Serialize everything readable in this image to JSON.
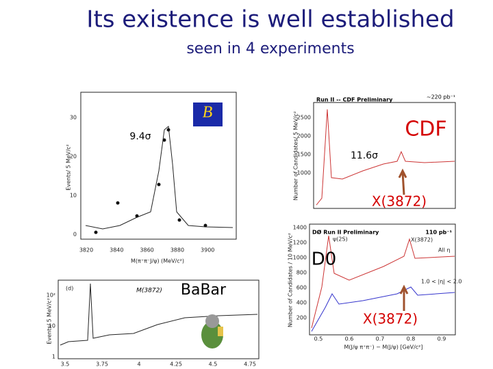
{
  "header": {
    "title": "Its existence is well established",
    "subtitle": "seen in 4 experiments"
  },
  "belle": {
    "significance": "9.4σ",
    "y_label": "Events/ 5 MeV/c²",
    "x_label": "M(π⁺π⁻J/ψ) (MeV/c²)",
    "yticks": [
      "0",
      "10",
      "20",
      "30"
    ],
    "xticks": [
      "3820",
      "3840",
      "3860",
      "3880",
      "3900"
    ]
  },
  "cdf": {
    "label": "CDF",
    "significance": "11.6σ",
    "arrow_label": "X(3872)",
    "plot_title": "Run II -- CDF Preliminary",
    "luminosity": "~220 pb⁻¹",
    "y_label": "Number of Candidates/ 5 MeV/c²",
    "yticks": [
      "2500",
      "2000",
      "1500",
      "1000"
    ]
  },
  "d0": {
    "label": "D0",
    "arrow_label": "X(3872)",
    "plot_title": "DØ Run II Preliminary",
    "luminosity": "110 pb⁻¹",
    "y_label": "Number of Candidates / 10 MeV/c²",
    "x_label": "M(J/ψ π⁺π⁻) − M(J/ψ) [GeV/c²]",
    "peak1": "ψ(2S)",
    "peak2": "X(3872)",
    "curve1": "All η",
    "curve2": "1.0 < |η| < 2.0",
    "yticks": [
      "1400",
      "1200",
      "1000",
      "800",
      "600",
      "400",
      "200"
    ],
    "xticks": [
      "0.5",
      "0.6",
      "0.7",
      "0.8",
      "0.9"
    ]
  },
  "babar": {
    "label": "BaBar",
    "panel": "(d)",
    "peak": "M(3872)",
    "y_label": "Events/ 5 MeV/c²",
    "yticks": [
      "10²",
      "10",
      "1"
    ],
    "xticks": [
      "3.5",
      "3.75",
      "4",
      "4.25",
      "4.5",
      "4.75"
    ]
  }
}
